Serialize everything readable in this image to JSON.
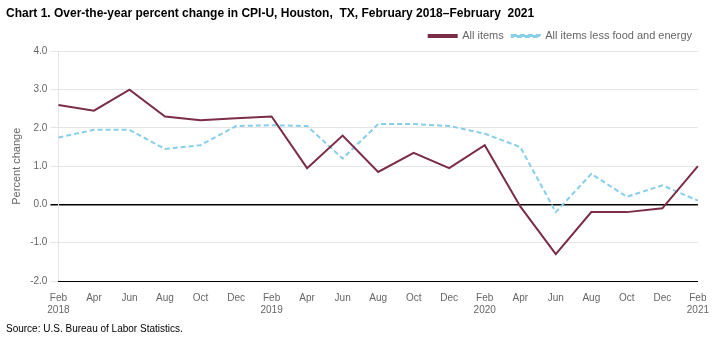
{
  "chart_data": {
    "type": "line",
    "title": "Chart 1. Over-the-year percent change in CPI-U, Houston,  TX, February 2018–February  2021",
    "ylabel": "Percent change",
    "source": "Source: U.S. Bureau of Labor Statistics.",
    "categories": [
      "Feb\n2018",
      "Apr",
      "Jun",
      "Aug",
      "Oct",
      "Dec",
      "Feb\n2019",
      "Apr",
      "Jun",
      "Aug",
      "Oct",
      "Dec",
      "Feb\n2020",
      "Apr",
      "Jun",
      "Aug",
      "Oct",
      "Dec",
      "Feb\n2021"
    ],
    "series": [
      {
        "name": "All items",
        "color": "#7B2D47",
        "line_style": "solid",
        "values": [
          2.6,
          2.45,
          3.0,
          2.3,
          2.2,
          2.25,
          2.3,
          0.95,
          1.8,
          0.85,
          1.35,
          0.95,
          1.55,
          -0.05,
          -1.3,
          -0.2,
          -0.2,
          -0.1,
          1.0
        ]
      },
      {
        "name": "All items less food and energy",
        "color": "#87CEEB",
        "line_style": "dashed",
        "values": [
          1.75,
          1.95,
          1.95,
          1.45,
          1.55,
          2.05,
          2.07,
          2.05,
          1.2,
          2.1,
          2.1,
          2.05,
          1.85,
          1.5,
          -0.2,
          0.8,
          0.2,
          0.5,
          0.1
        ]
      }
    ],
    "ylim": [
      -2.0,
      4.0
    ],
    "yticks": [
      {
        "value": -2.0,
        "label": "-2.0"
      },
      {
        "value": -1.0,
        "label": "-1.0"
      },
      {
        "value": 0.0,
        "label": "0.0"
      },
      {
        "value": 1.0,
        "label": "1.0"
      },
      {
        "value": 2.0,
        "label": "2.0"
      },
      {
        "value": 3.0,
        "label": "3.0"
      },
      {
        "value": 4.0,
        "label": "4.0"
      }
    ],
    "grid": true,
    "legend": "upper right"
  }
}
